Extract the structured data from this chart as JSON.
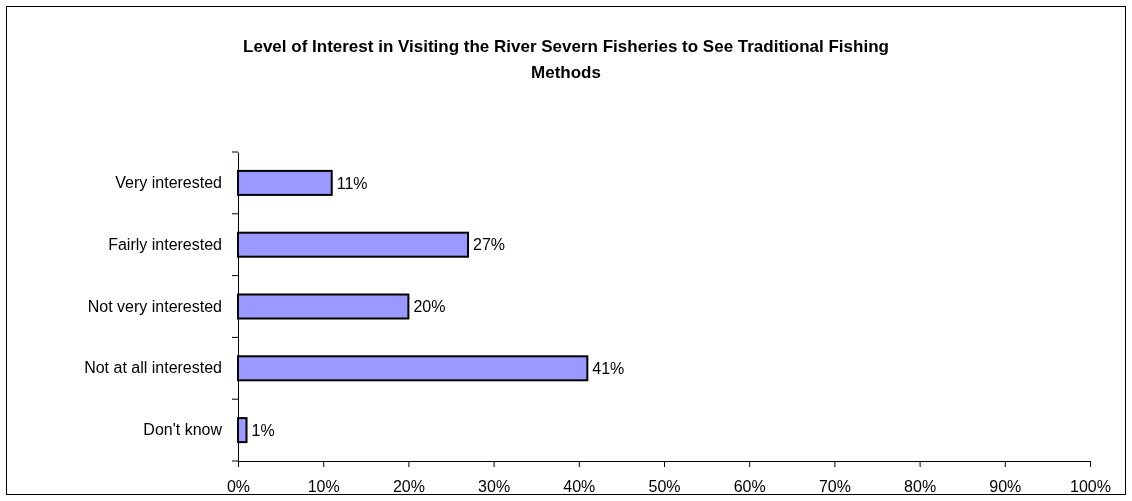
{
  "chart_data": {
    "type": "bar",
    "orientation": "horizontal",
    "title": "Level of Interest in Visiting the River Severn Fisheries to See Traditional Fishing Methods",
    "categories": [
      "Very interested",
      "Fairly interested",
      "Not very interested",
      "Not at all interested",
      "Don't know"
    ],
    "values": [
      11,
      27,
      20,
      41,
      1
    ],
    "color": "#9999ff",
    "value_labels": [
      "11%",
      "27%",
      "20%",
      "41%",
      "1%"
    ],
    "xlim": [
      0,
      100
    ],
    "xticks": [
      {
        "value": 0,
        "label": "0%"
      },
      {
        "value": 10,
        "label": "10%"
      },
      {
        "value": 20,
        "label": "20%"
      },
      {
        "value": 30,
        "label": "30%"
      },
      {
        "value": 40,
        "label": "40%"
      },
      {
        "value": 50,
        "label": "50%"
      },
      {
        "value": 60,
        "label": "60%"
      },
      {
        "value": 70,
        "label": "70%"
      },
      {
        "value": 80,
        "label": "80%"
      },
      {
        "value": 90,
        "label": "90%"
      },
      {
        "value": 100,
        "label": "100%"
      }
    ],
    "grid": false
  }
}
